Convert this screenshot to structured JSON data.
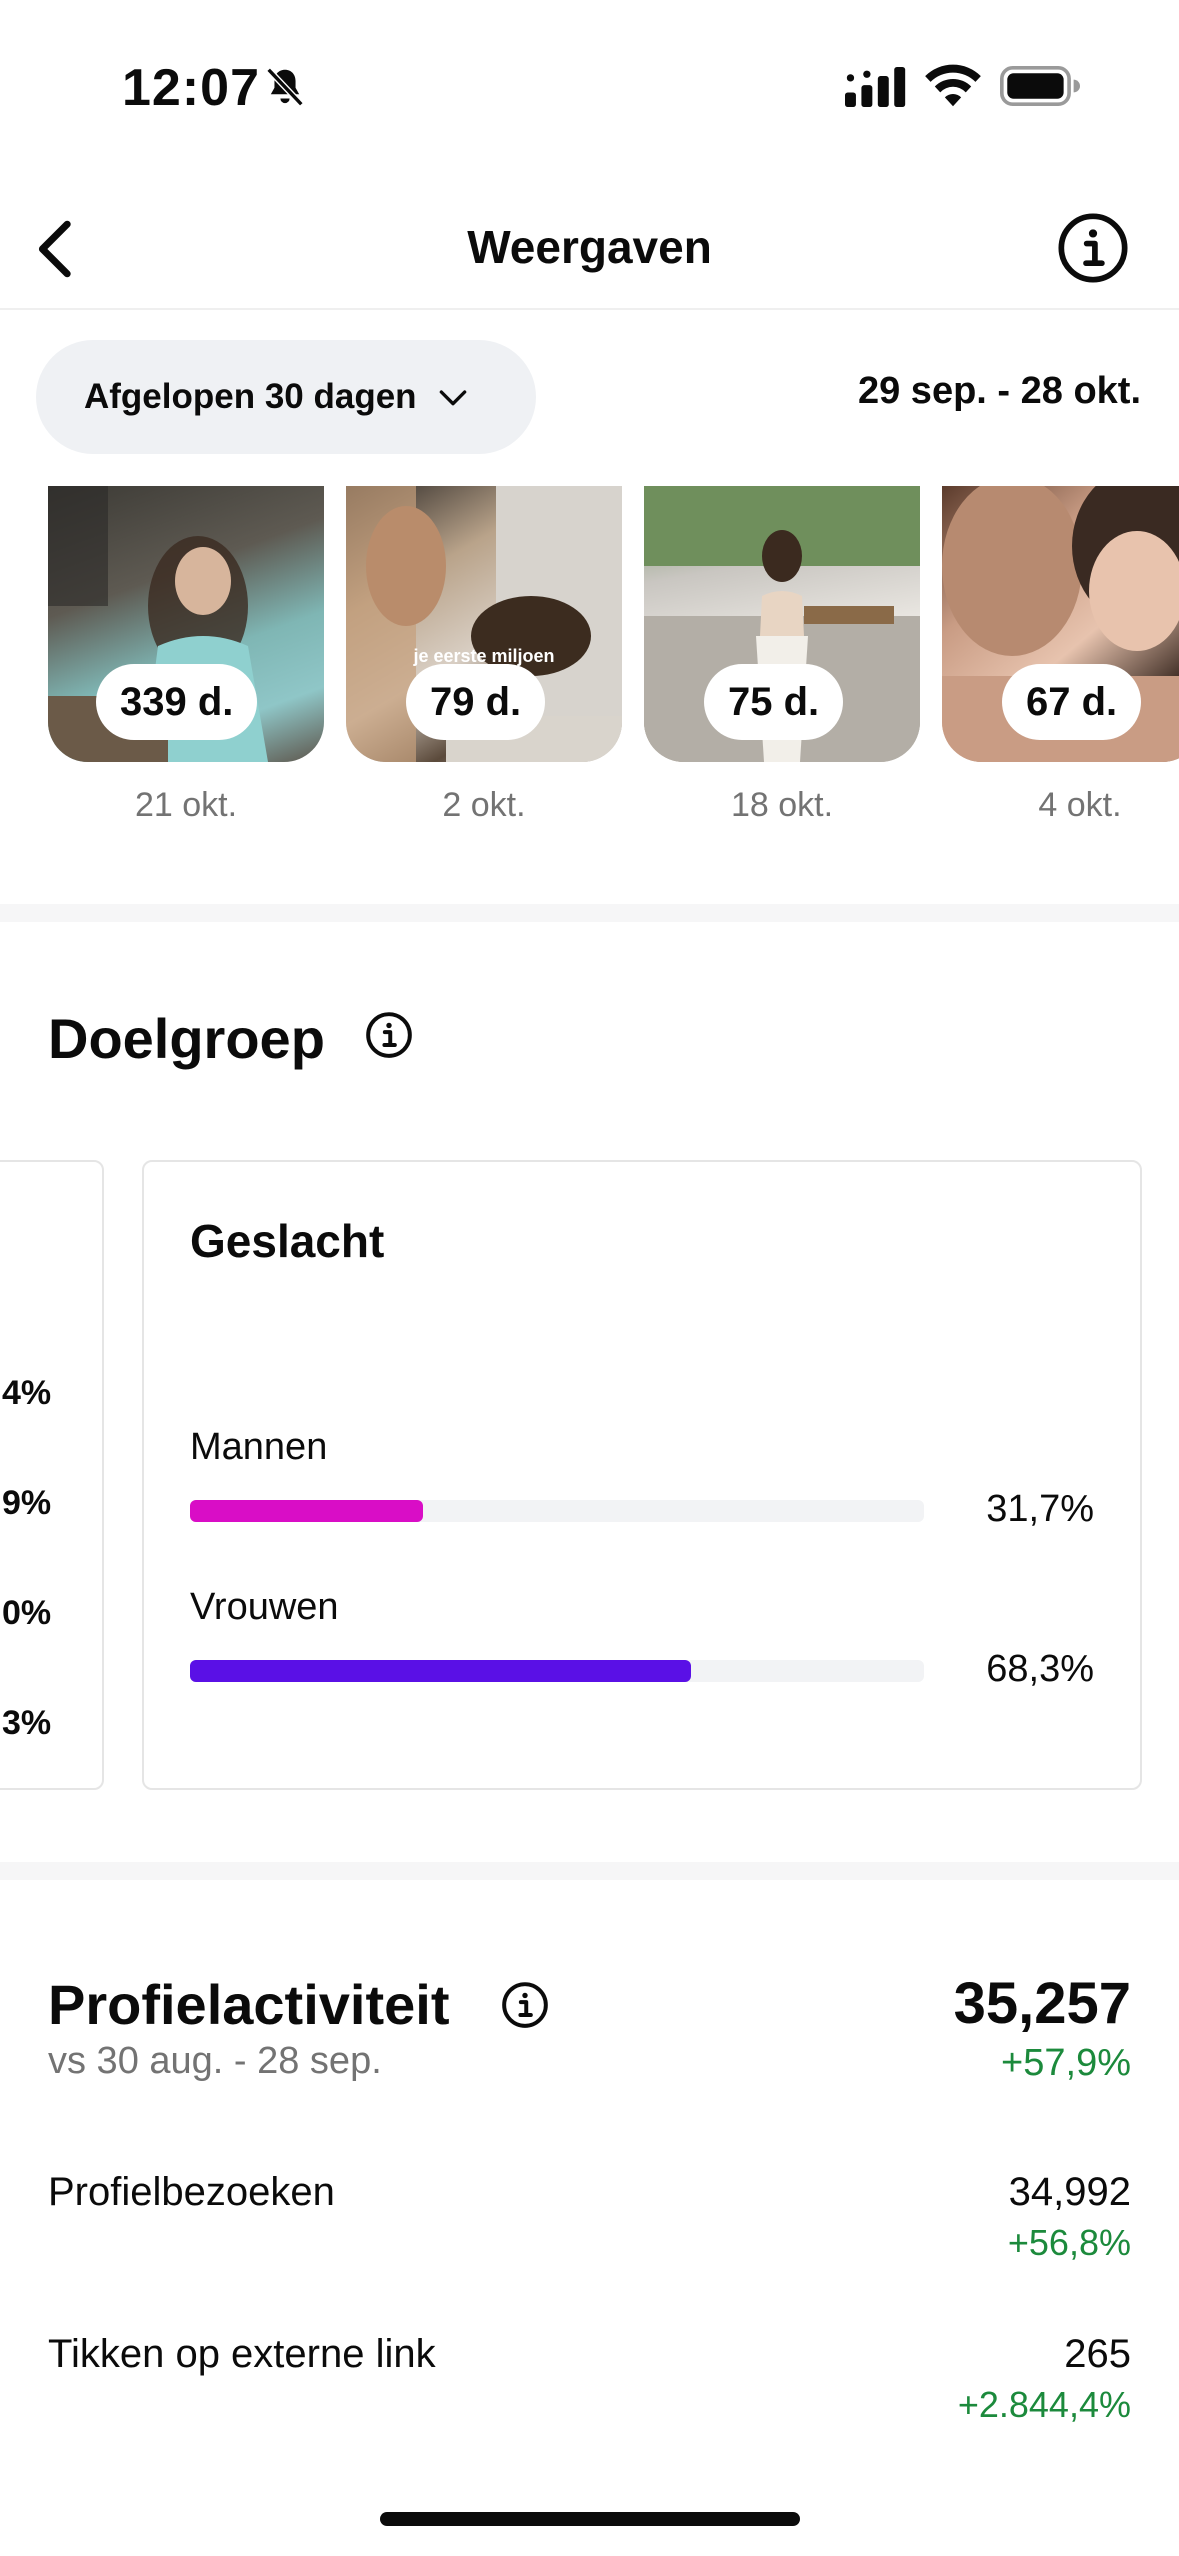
{
  "status_bar": {
    "time": "12:07",
    "icons": [
      "bell-off-icon",
      "cellular-signal-icon",
      "wifi-icon",
      "battery-icon"
    ]
  },
  "header": {
    "title": "Weergaven",
    "icons": [
      "back-icon",
      "info-icon"
    ]
  },
  "filter": {
    "period_label": "Afgelopen 30 dagen",
    "date_range": "29 sep. - 28 okt."
  },
  "posts": [
    {
      "views": "339 d.",
      "date": "21 okt.",
      "caption": ""
    },
    {
      "views": "79 d.",
      "date": "2 okt.",
      "caption": "je eerste miljoen"
    },
    {
      "views": "75 d.",
      "date": "18 okt.",
      "caption": ""
    },
    {
      "views": "67 d.",
      "date": "4 okt.",
      "caption": ""
    }
  ],
  "audience": {
    "title": "Doelgroep",
    "prev_card_values": [
      "4%",
      "9%",
      "0%",
      "3%"
    ],
    "gender_card": {
      "title": "Geslacht",
      "items": [
        {
          "label": "Mannen",
          "value": "31,7%",
          "fraction": 0.317,
          "color": "#d90dc6"
        },
        {
          "label": "Vrouwen",
          "value": "68,3%",
          "fraction": 0.683,
          "color": "#5a10e6"
        }
      ]
    }
  },
  "profile_activity": {
    "title": "Profielactiviteit",
    "compare_label": "vs 30 aug. - 28 sep.",
    "total": "35,257",
    "total_change": "+57,9%",
    "metrics": [
      {
        "label": "Profielbezoeken",
        "value": "34,992",
        "change": "+56,8%"
      },
      {
        "label": "Tikken op externe link",
        "value": "265",
        "change": "+2.844,4%"
      }
    ]
  },
  "colors": {
    "positive": "#1c8a3c",
    "muted_text": "#737373",
    "pill_bg": "#eff1f4"
  }
}
